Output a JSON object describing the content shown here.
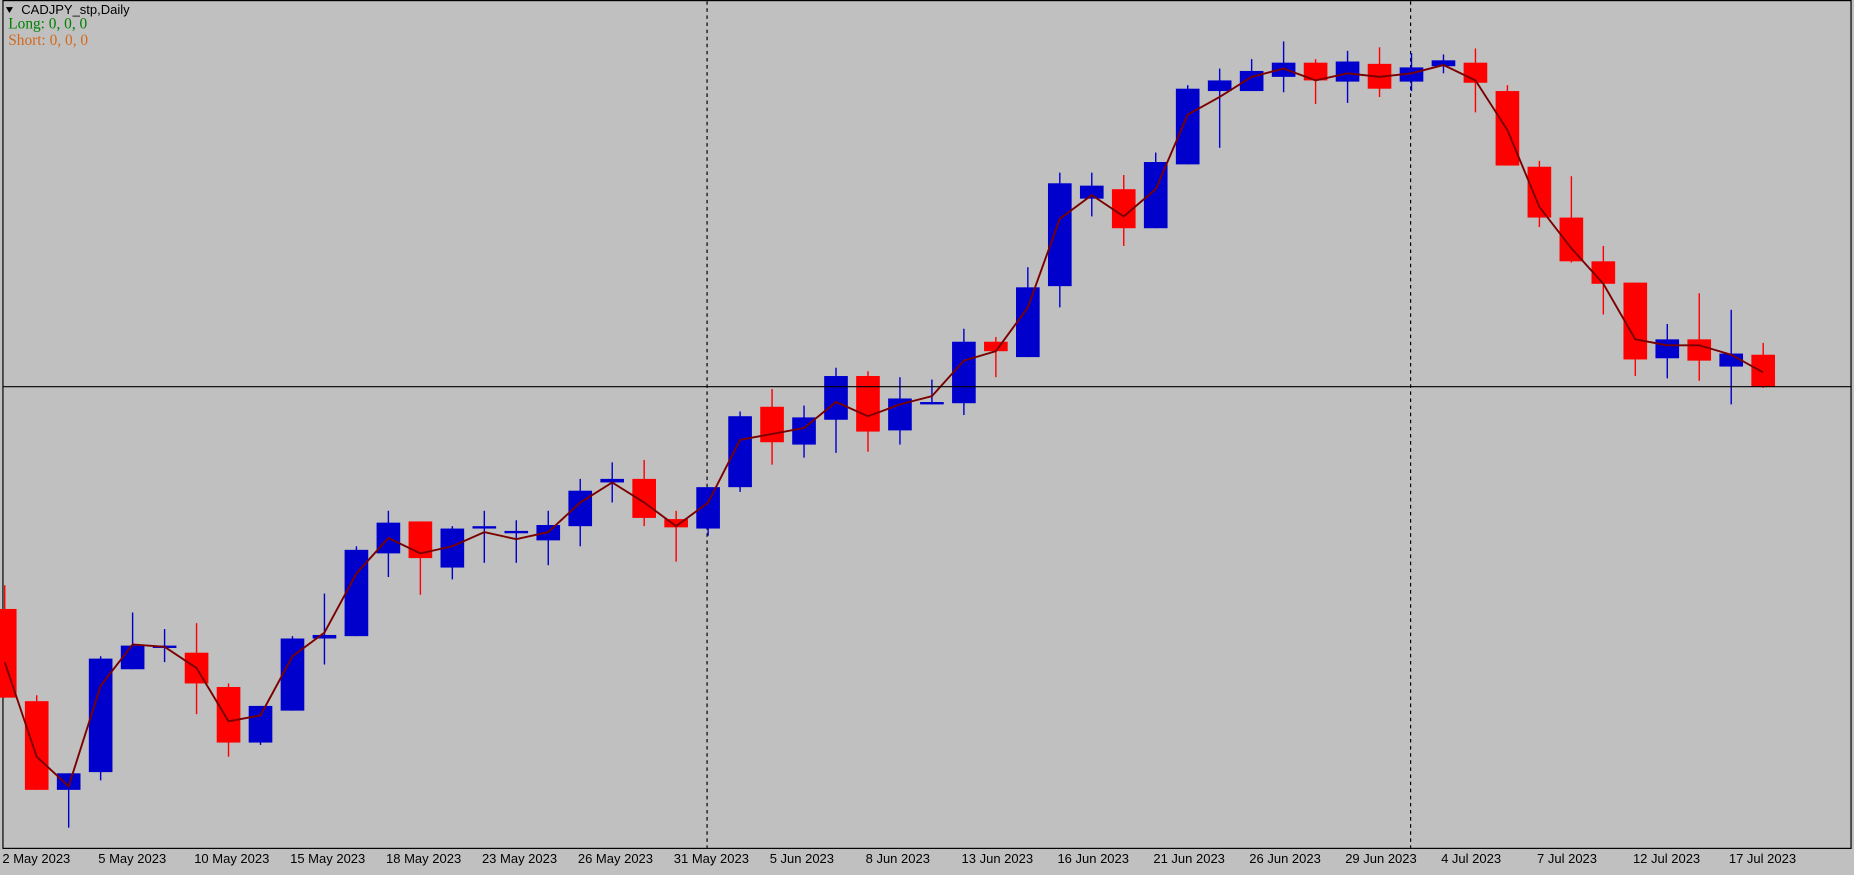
{
  "chart_data": {
    "type": "candlestick",
    "title": "CADJPY_stp,Daily",
    "annotations": [
      "Long: 0, 0, 0",
      "Short: 0, 0, 0"
    ],
    "annotation_colors": [
      "#008000",
      "#d2691e"
    ],
    "categories": [
      "2 May 2023",
      null,
      null,
      "5 May 2023",
      null,
      null,
      "10 May 2023",
      null,
      null,
      "15 May 2023",
      null,
      null,
      "18 May 2023",
      null,
      null,
      "23 May 2023",
      null,
      null,
      "26 May 2023",
      null,
      null,
      "31 May 2023",
      null,
      null,
      "5 Jun 2023",
      null,
      null,
      "8 Jun 2023",
      null,
      null,
      "13 Jun 2023",
      null,
      null,
      "16 Jun 2023",
      null,
      null,
      "21 Jun 2023",
      null,
      null,
      "26 Jun 2023",
      null,
      null,
      "29 Jun 2023",
      null,
      null,
      "4 Jul 2023",
      null,
      null,
      "7 Jul 2023",
      null,
      null,
      "12 Jul 2023",
      null,
      null,
      "17 Jul 2023",
      null
    ],
    "open": [
      104.85,
      104.07,
      103.32,
      103.47,
      104.34,
      104.52,
      104.48,
      104.19,
      103.72,
      103.99,
      104.6,
      104.62,
      105.32,
      105.59,
      105.2,
      105.53,
      105.49,
      105.43,
      105.55,
      105.92,
      105.95,
      105.61,
      105.53,
      105.88,
      106.56,
      106.24,
      106.45,
      106.82,
      106.36,
      106.58,
      106.59,
      107.11,
      106.98,
      107.58,
      108.32,
      108.4,
      108.07,
      108.61,
      109.23,
      109.23,
      109.35,
      109.47,
      109.31,
      109.46,
      109.31,
      109.44,
      109.47,
      109.23,
      108.59,
      108.16,
      107.79,
      107.61,
      106.97,
      107.13,
      106.9,
      107.0
    ],
    "high": [
      105.05,
      104.12,
      103.46,
      104.45,
      104.82,
      104.68,
      104.73,
      104.22,
      104.03,
      104.62,
      104.98,
      105.38,
      105.68,
      105.59,
      105.55,
      105.68,
      105.6,
      105.68,
      105.95,
      106.09,
      106.11,
      105.68,
      105.88,
      106.52,
      106.71,
      106.57,
      106.89,
      106.86,
      106.81,
      106.79,
      107.22,
      107.15,
      107.74,
      108.54,
      108.54,
      108.52,
      108.71,
      109.28,
      109.42,
      109.5,
      109.65,
      109.5,
      109.57,
      109.6,
      109.55,
      109.54,
      109.59,
      109.28,
      108.64,
      108.51,
      107.92,
      107.61,
      107.26,
      107.52,
      107.38,
      107.1
    ],
    "low": [
      104.1,
      103.32,
      103.0,
      103.4,
      104.34,
      104.4,
      103.96,
      103.6,
      103.7,
      103.99,
      104.38,
      104.62,
      105.12,
      104.97,
      105.1,
      105.24,
      105.24,
      105.22,
      105.38,
      105.75,
      105.55,
      105.25,
      105.47,
      105.84,
      106.07,
      106.13,
      106.17,
      106.18,
      106.24,
      106.58,
      106.49,
      106.81,
      106.98,
      107.4,
      108.17,
      107.92,
      108.07,
      108.61,
      108.75,
      109.23,
      109.22,
      109.12,
      109.13,
      109.18,
      109.23,
      109.38,
      109.05,
      108.6,
      108.08,
      107.78,
      107.34,
      106.82,
      106.8,
      106.78,
      106.58,
      106.72
    ],
    "close": [
      104.1,
      103.32,
      103.46,
      104.43,
      104.54,
      104.54,
      104.22,
      103.72,
      104.03,
      104.6,
      104.63,
      105.35,
      105.58,
      105.28,
      105.53,
      105.55,
      105.51,
      105.56,
      105.85,
      105.95,
      105.62,
      105.54,
      105.88,
      106.48,
      106.26,
      106.47,
      106.82,
      106.35,
      106.63,
      106.6,
      107.11,
      107.03,
      107.57,
      108.45,
      108.43,
      108.07,
      108.63,
      109.25,
      109.32,
      109.4,
      109.47,
      109.32,
      109.48,
      109.25,
      109.43,
      109.49,
      109.3,
      108.6,
      108.16,
      107.79,
      107.6,
      106.96,
      107.13,
      106.95,
      107.01,
      106.73
    ],
    "up_color": "#0000cd",
    "down_color": "#ff0000",
    "ma": {
      "color": "#7a0000",
      "values": [
        104.4,
        103.6,
        103.35,
        104.2,
        104.55,
        104.53,
        104.35,
        103.9,
        103.95,
        104.45,
        104.65,
        105.15,
        105.45,
        105.32,
        105.38,
        105.5,
        105.44,
        105.5,
        105.75,
        105.92,
        105.75,
        105.55,
        105.75,
        106.28,
        106.33,
        106.38,
        106.6,
        106.48,
        106.58,
        106.65,
        106.95,
        107.03,
        107.4,
        108.15,
        108.35,
        108.17,
        108.4,
        109.03,
        109.18,
        109.35,
        109.42,
        109.32,
        109.38,
        109.35,
        109.38,
        109.45,
        109.32,
        108.9,
        108.25,
        107.9,
        107.6,
        107.13,
        107.08,
        107.08,
        107.0,
        106.85
      ]
    },
    "ylim": [
      102.83,
      110
    ],
    "grid": false,
    "price_line": true
  }
}
